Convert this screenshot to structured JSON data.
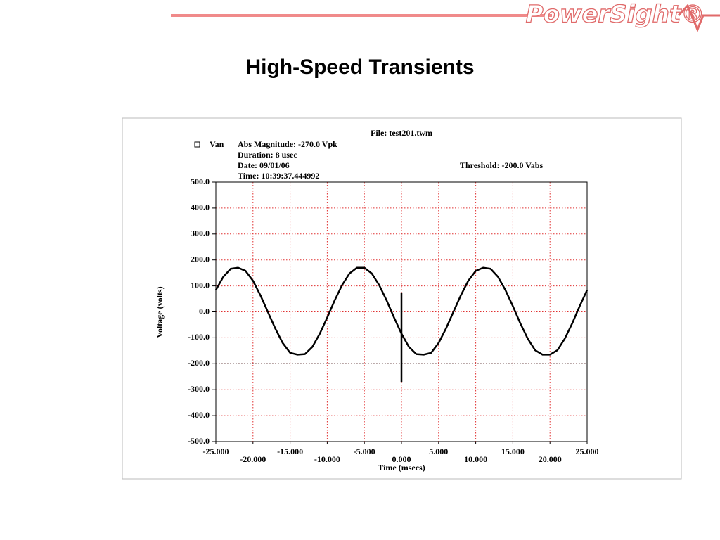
{
  "slide": {
    "title": "High-Speed Transients",
    "logo": "PowerSight®"
  },
  "chart_data": {
    "type": "line",
    "header": {
      "file": "File: test201.twm",
      "magnitude": "Abs Magnitude: -270.0 Vpk",
      "duration": "Duration: 8 usec",
      "date": "Date: 09/01/06",
      "time": "Time: 10:39:37.444992",
      "threshold": "Threshold: -200.0 Vabs"
    },
    "x_label": "Time (msecs)",
    "y_label": "Voltage (volts)",
    "x": [
      -25,
      -24,
      -23,
      -22,
      -21,
      -20,
      -19,
      -18,
      -17,
      -16,
      -15,
      -14,
      -13,
      -12,
      -11,
      -10,
      -9,
      -8,
      -7,
      -6,
      -5,
      -4,
      -3,
      -2,
      -1,
      0,
      1,
      2,
      3,
      4,
      5,
      6,
      7,
      8,
      9,
      10,
      11,
      12,
      13,
      14,
      15,
      16,
      17,
      18,
      19,
      20,
      21,
      22,
      23,
      24,
      25
    ],
    "series": [
      {
        "name": "Van",
        "color": "#000000",
        "values": [
          84,
          135,
          166,
          170,
          158,
          120,
          64,
          0,
          -64,
          -120,
          -158,
          -165,
          -163,
          -135,
          -84,
          -22,
          44,
          103,
          148,
          170,
          170,
          148,
          103,
          44,
          -22,
          -84,
          -135,
          -163,
          -165,
          -158,
          -120,
          -64,
          0,
          64,
          120,
          158,
          170,
          166,
          135,
          84,
          22,
          -44,
          -103,
          -148,
          -165,
          -165,
          -148,
          -103,
          -44,
          22,
          84
        ]
      }
    ],
    "spike": {
      "x": [
        0,
        0
      ],
      "values": [
        75,
        -270
      ]
    },
    "threshold": -200,
    "xlim": [
      -25,
      25
    ],
    "ylim": [
      -500,
      500
    ],
    "xticks": [
      {
        "value": -25,
        "label": "-25.000"
      },
      {
        "value": -20,
        "label": "-20.000"
      },
      {
        "value": -15,
        "label": "-15.000"
      },
      {
        "value": -10,
        "label": "-10.000"
      },
      {
        "value": -5,
        "label": "-5.000"
      },
      {
        "value": 0,
        "label": "0.000"
      },
      {
        "value": 5,
        "label": "5.000"
      },
      {
        "value": 10,
        "label": "10.000"
      },
      {
        "value": 15,
        "label": "15.000"
      },
      {
        "value": 20,
        "label": "20.000"
      },
      {
        "value": 25,
        "label": "25.000"
      }
    ],
    "yticks": [
      {
        "value": -500,
        "label": "-500.0"
      },
      {
        "value": -400,
        "label": "-400.0"
      },
      {
        "value": -300,
        "label": "-300.0"
      },
      {
        "value": -200,
        "label": "-200.0"
      },
      {
        "value": -100,
        "label": "-100.0"
      },
      {
        "value": 0,
        "label": "0.0"
      },
      {
        "value": 100,
        "label": "100.0"
      },
      {
        "value": 200,
        "label": "200.0"
      },
      {
        "value": 300,
        "label": "300.0"
      },
      {
        "value": 400,
        "label": "400.0"
      },
      {
        "value": 500,
        "label": "500.0"
      }
    ],
    "grid": true,
    "grid_color": "#e03030"
  }
}
